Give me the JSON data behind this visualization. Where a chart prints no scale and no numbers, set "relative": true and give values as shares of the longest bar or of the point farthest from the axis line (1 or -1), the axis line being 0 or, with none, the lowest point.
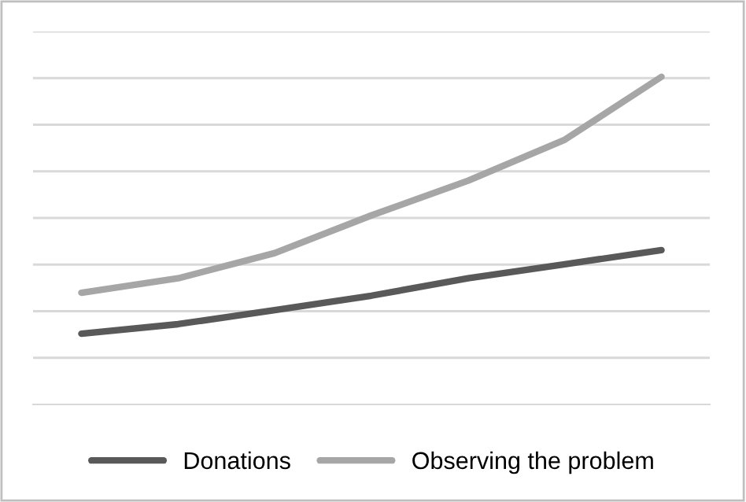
{
  "chart_data": {
    "type": "line",
    "relative": true,
    "categories": [
      null,
      null,
      null,
      null,
      null,
      null,
      null
    ],
    "series": [
      {
        "name": "Donations",
        "color": "#595959",
        "values": [
          0.216,
          0.245,
          0.288,
          0.332,
          0.385,
          0.428,
          0.471
        ]
      },
      {
        "name": "Observing the problem",
        "color": "#a6a6a6",
        "values": [
          0.341,
          0.385,
          0.462,
          0.577,
          0.683,
          0.808,
          1.0
        ]
      }
    ],
    "grid": "y",
    "legend": "bottom",
    "marker": "none",
    "line_style": "solid"
  }
}
